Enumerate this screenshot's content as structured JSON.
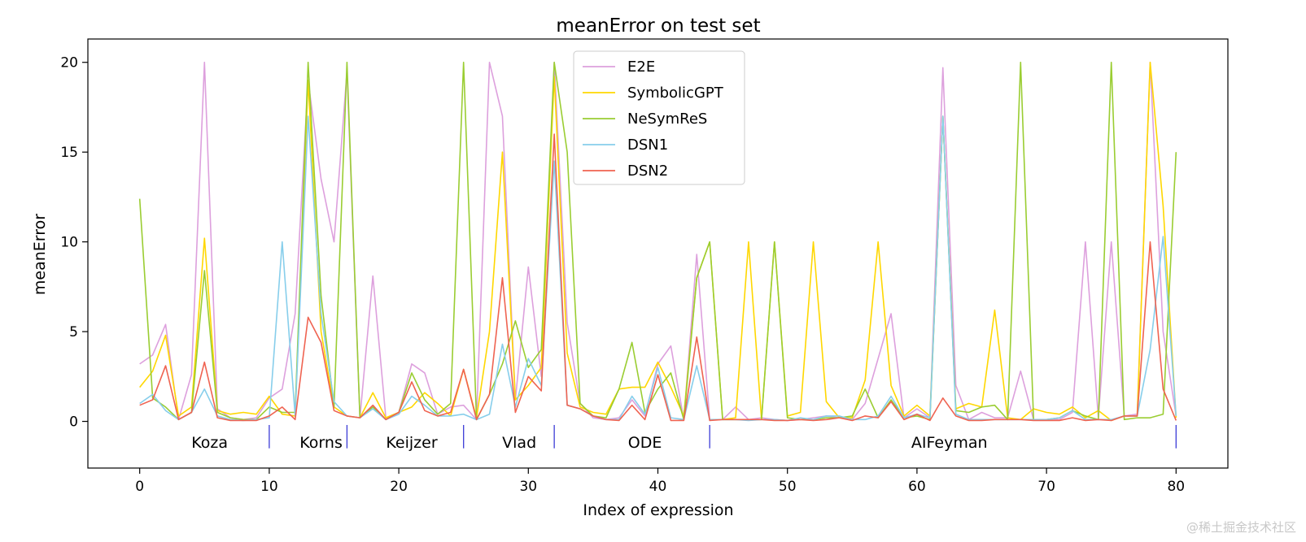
{
  "chart_data": {
    "type": "line",
    "title": "meanError on test set",
    "xlabel": "Index of expression",
    "ylabel": "meanError",
    "xlim": [
      -4,
      84
    ],
    "ylim": [
      -2.6,
      21.3
    ],
    "xticks": [
      0,
      10,
      20,
      30,
      40,
      50,
      60,
      70,
      80
    ],
    "yticks": [
      0,
      5,
      10,
      15,
      20
    ],
    "legend_position": "top-center",
    "series": [
      {
        "name": "E2E",
        "color": "#dda0dd",
        "values": [
          3.2,
          3.7,
          5.4,
          0.1,
          2.6,
          20.0,
          0.7,
          0.2,
          0.1,
          0.2,
          1.3,
          1.8,
          6.0,
          19.0,
          13.5,
          10.0,
          19.5,
          0.2,
          8.1,
          0.2,
          0.5,
          3.2,
          2.7,
          0.4,
          0.8,
          0.9,
          0.1,
          20.0,
          17.0,
          1.2,
          8.6,
          2.5,
          20.0,
          5.5,
          1.0,
          0.2,
          0.1,
          0.2,
          1.2,
          0.3,
          3.2,
          4.2,
          0.1,
          9.3,
          0.1,
          0.1,
          0.8,
          0.1,
          0.2,
          0.1,
          0.05,
          0.1,
          0.2,
          0.3,
          0.2,
          0.1,
          1.0,
          3.5,
          6.0,
          0.2,
          0.7,
          0.2,
          19.7,
          2.0,
          0.1,
          0.5,
          0.2,
          0.2,
          2.8,
          0.1,
          0.1,
          0.1,
          0.5,
          10.0,
          0.2,
          10.0,
          0.3,
          0.4,
          20.0,
          5.0,
          0.3
        ]
      },
      {
        "name": "SymbolicGPT",
        "color": "#ffd700",
        "values": [
          1.9,
          2.8,
          4.8,
          0.3,
          0.8,
          10.2,
          0.6,
          0.4,
          0.5,
          0.4,
          1.4,
          0.4,
          0.3,
          19.0,
          5.0,
          0.8,
          0.3,
          0.2,
          1.6,
          0.2,
          0.5,
          0.8,
          1.6,
          1.0,
          0.3,
          2.9,
          0.2,
          5.0,
          15.0,
          1.2,
          2.0,
          3.0,
          19.2,
          3.8,
          0.8,
          0.5,
          0.4,
          1.8,
          1.9,
          1.9,
          3.3,
          1.9,
          0.3,
          8.0,
          10.0,
          0.1,
          0.2,
          10.0,
          0.1,
          10.0,
          0.3,
          0.5,
          10.0,
          1.1,
          0.2,
          0.2,
          2.3,
          10.0,
          2.0,
          0.3,
          0.9,
          0.3,
          17.0,
          0.7,
          1.0,
          0.8,
          6.2,
          0.2,
          0.1,
          0.7,
          0.5,
          0.4,
          0.8,
          0.2,
          0.6,
          0.05,
          0.3,
          0.3,
          20.0,
          12.0,
          0.2
        ]
      },
      {
        "name": "NeSymReS",
        "color": "#9acd32",
        "values": [
          12.4,
          1.3,
          0.8,
          0.1,
          0.5,
          8.4,
          0.5,
          0.2,
          0.1,
          0.1,
          0.8,
          0.5,
          0.5,
          20.0,
          7.0,
          0.8,
          20.0,
          0.2,
          0.8,
          0.1,
          0.5,
          2.7,
          1.2,
          0.4,
          1.0,
          20.0,
          0.1,
          1.5,
          3.2,
          5.6,
          3.0,
          4.0,
          20.0,
          15.0,
          1.0,
          0.3,
          0.2,
          1.8,
          4.4,
          0.5,
          1.8,
          2.7,
          0.1,
          8.0,
          10.0,
          0.1,
          0.1,
          0.1,
          0.1,
          10.0,
          0.2,
          0.1,
          0.1,
          0.2,
          0.2,
          0.3,
          1.8,
          0.2,
          1.2,
          0.2,
          0.3,
          0.1,
          17.0,
          0.6,
          0.5,
          0.8,
          0.9,
          0.1,
          20.0,
          0.1,
          0.1,
          0.2,
          0.6,
          0.3,
          0.1,
          20.0,
          0.1,
          0.2,
          0.2,
          0.4,
          15.0
        ]
      },
      {
        "name": "DSN1",
        "color": "#87ceeb",
        "values": [
          1.0,
          1.5,
          0.6,
          0.1,
          0.5,
          1.8,
          0.3,
          0.1,
          0.05,
          0.1,
          0.2,
          10.0,
          0.3,
          17.0,
          6.0,
          1.1,
          0.3,
          0.2,
          0.7,
          0.1,
          0.4,
          1.4,
          0.9,
          0.3,
          0.3,
          0.4,
          0.1,
          0.4,
          4.3,
          0.8,
          3.5,
          2.0,
          14.5,
          0.9,
          0.7,
          0.3,
          0.1,
          0.1,
          1.4,
          0.4,
          3.0,
          0.2,
          0.1,
          3.1,
          0.1,
          0.1,
          0.1,
          0.05,
          0.1,
          0.1,
          0.05,
          0.2,
          0.1,
          0.3,
          0.3,
          0.1,
          0.1,
          0.3,
          1.4,
          0.2,
          0.4,
          0.2,
          17.0,
          0.4,
          0.1,
          0.1,
          0.1,
          0.1,
          0.1,
          0.1,
          0.1,
          0.2,
          0.6,
          0.1,
          0.1,
          0.1,
          0.3,
          0.3,
          4.0,
          10.3,
          0.3
        ]
      },
      {
        "name": "DSN2",
        "color": "#ef6351",
        "values": [
          0.9,
          1.2,
          3.1,
          0.1,
          0.5,
          3.3,
          0.2,
          0.05,
          0.05,
          0.05,
          0.3,
          0.8,
          0.1,
          5.8,
          4.4,
          0.6,
          0.3,
          0.2,
          0.9,
          0.1,
          0.5,
          2.2,
          0.6,
          0.3,
          0.5,
          2.9,
          0.1,
          1.5,
          8.0,
          0.5,
          2.5,
          1.7,
          16.0,
          0.9,
          0.7,
          0.3,
          0.1,
          0.05,
          0.9,
          0.1,
          2.6,
          0.05,
          0.05,
          4.7,
          0.05,
          0.1,
          0.1,
          0.1,
          0.1,
          0.05,
          0.05,
          0.1,
          0.05,
          0.1,
          0.2,
          0.05,
          0.3,
          0.2,
          1.1,
          0.1,
          0.4,
          0.05,
          1.3,
          0.3,
          0.05,
          0.05,
          0.1,
          0.1,
          0.1,
          0.05,
          0.05,
          0.05,
          0.2,
          0.05,
          0.1,
          0.05,
          0.3,
          0.3,
          10.0,
          1.8,
          0.05
        ]
      }
    ],
    "groups": [
      {
        "label": "Koza",
        "center": 5.4,
        "end": 10
      },
      {
        "label": "Korns",
        "center": 14,
        "end": 16
      },
      {
        "label": "Keijzer",
        "center": 21,
        "end": 25
      },
      {
        "label": "Vlad",
        "center": 29.3,
        "end": 32
      },
      {
        "label": "ODE",
        "center": 39,
        "end": 44
      },
      {
        "label": "AIFeyman",
        "center": 62.5,
        "end": 80
      }
    ],
    "group_label_y": -1.2,
    "group_divider_range": [
      -1.5,
      -0.2
    ],
    "group_divider_color": "#3b3bd6"
  },
  "watermark": "@稀土掘金技术社区"
}
